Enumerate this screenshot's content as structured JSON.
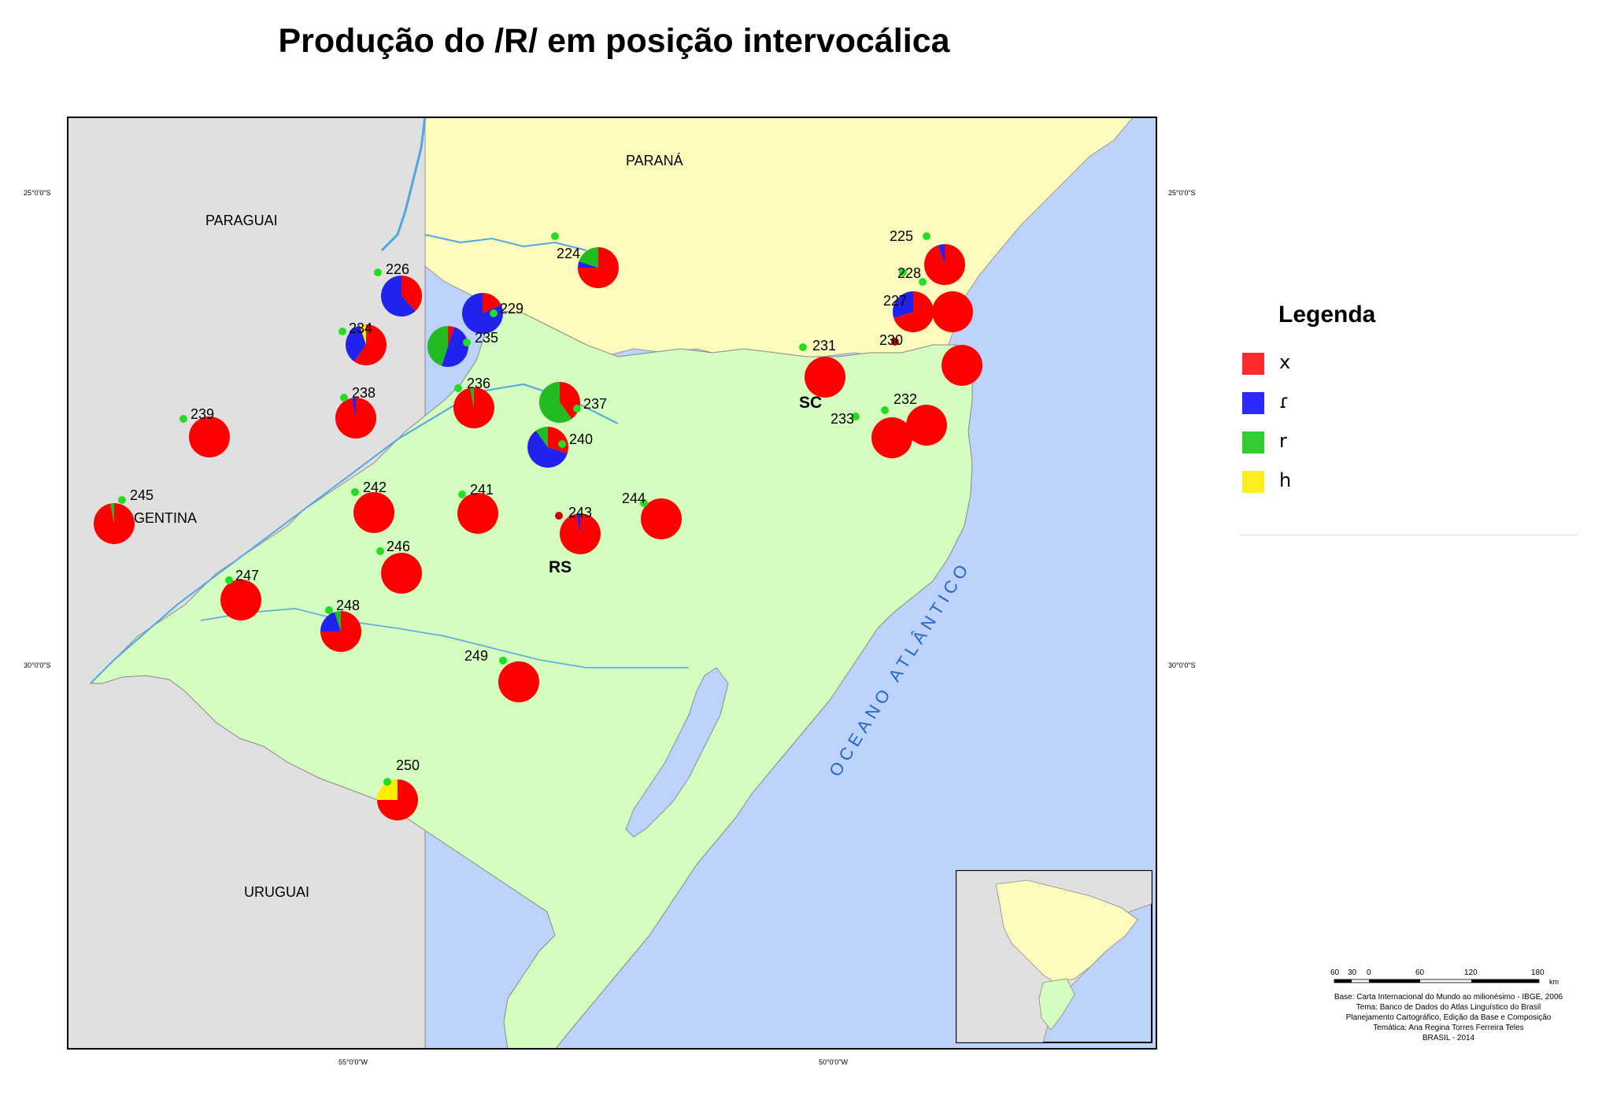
{
  "title": "Produção do /R/ em posição intervocálica",
  "colors": {
    "x": "#ff0000",
    "r_blue": "#2222ee",
    "r_green": "#22bb22",
    "h": "#ffee00",
    "study_area": "#d6fdc0",
    "parana": "#fdfbbe",
    "foreign": "#e0e0e0",
    "ocean": "#bed3fb",
    "river": "#4fa6e4",
    "point": "#22dd22"
  },
  "map": {
    "countries": {
      "paraguai": "PARAGUAI",
      "argentina": "ARGENTINA",
      "uruguai": "URUGUAI"
    },
    "states": {
      "parana": "PARANÁ",
      "sc": "SC",
      "rs": "RS"
    },
    "ocean_label": "OCEANO    ATLÂNTICO",
    "graticule": {
      "lat_top": "25°0'0\"S",
      "lat_bottom": "30°0'0\"S",
      "lon_left": "55°0'0\"W",
      "lon_right": "50°0'0\"W"
    }
  },
  "legend": {
    "title": "Legenda",
    "items": [
      {
        "symbol": "x",
        "color": "#ff0000"
      },
      {
        "symbol": "ɾ",
        "color": "#2222ee"
      },
      {
        "symbol": "r",
        "color": "#22bb22"
      },
      {
        "symbol": "h",
        "color": "#ffee00"
      }
    ]
  },
  "points": [
    {
      "id": "224",
      "x": 0.75,
      "r_blue": 0.05,
      "r_green": 0.2,
      "h": 0
    },
    {
      "id": "225",
      "x": 0.95,
      "r_blue": 0.05,
      "r_green": 0,
      "h": 0
    },
    {
      "id": "226",
      "x": 0.38,
      "r_blue": 0.62,
      "r_green": 0,
      "h": 0
    },
    {
      "id": "227",
      "x": 0.7,
      "r_blue": 0.3,
      "r_green": 0,
      "h": 0
    },
    {
      "id": "228",
      "x": 1.0,
      "r_blue": 0,
      "r_green": 0,
      "h": 0
    },
    {
      "id": "229",
      "x": 0.18,
      "r_blue": 0.82,
      "r_green": 0,
      "h": 0
    },
    {
      "id": "230",
      "x": 1.0,
      "r_blue": 0,
      "r_green": 0,
      "h": 0
    },
    {
      "id": "231",
      "x": 1.0,
      "r_blue": 0,
      "r_green": 0,
      "h": 0
    },
    {
      "id": "232",
      "x": 1.0,
      "r_blue": 0,
      "r_green": 0,
      "h": 0
    },
    {
      "id": "233",
      "x": 1.0,
      "r_blue": 0,
      "r_green": 0,
      "h": 0
    },
    {
      "id": "234",
      "x": 0.6,
      "r_blue": 0.35,
      "r_green": 0,
      "h": 0.05
    },
    {
      "id": "235",
      "x": 0.05,
      "r_blue": 0.5,
      "r_green": 0.45,
      "h": 0
    },
    {
      "id": "236",
      "x": 0.97,
      "r_blue": 0,
      "r_green": 0.03,
      "h": 0
    },
    {
      "id": "237",
      "x": 0.4,
      "r_blue": 0,
      "r_green": 0.6,
      "h": 0
    },
    {
      "id": "238",
      "x": 0.97,
      "r_blue": 0.03,
      "r_green": 0,
      "h": 0
    },
    {
      "id": "239",
      "x": 1.0,
      "r_blue": 0,
      "r_green": 0,
      "h": 0
    },
    {
      "id": "240",
      "x": 0.3,
      "r_blue": 0.6,
      "r_green": 0.1,
      "h": 0
    },
    {
      "id": "241",
      "x": 1.0,
      "r_blue": 0,
      "r_green": 0,
      "h": 0
    },
    {
      "id": "242",
      "x": 1.0,
      "r_blue": 0,
      "r_green": 0,
      "h": 0
    },
    {
      "id": "243",
      "x": 0.97,
      "r_blue": 0.03,
      "r_green": 0,
      "h": 0
    },
    {
      "id": "244",
      "x": 1.0,
      "r_blue": 0,
      "r_green": 0,
      "h": 0
    },
    {
      "id": "245",
      "x": 0.97,
      "r_blue": 0,
      "r_green": 0.03,
      "h": 0
    },
    {
      "id": "246",
      "x": 1.0,
      "r_blue": 0,
      "r_green": 0,
      "h": 0
    },
    {
      "id": "247",
      "x": 1.0,
      "r_blue": 0,
      "r_green": 0,
      "h": 0
    },
    {
      "id": "248",
      "x": 0.75,
      "r_blue": 0.2,
      "r_green": 0.05,
      "h": 0
    },
    {
      "id": "249",
      "x": 1.0,
      "r_blue": 0,
      "r_green": 0,
      "h": 0
    },
    {
      "id": "250",
      "x": 0.75,
      "r_blue": 0,
      "r_green": 0,
      "h": 0.25
    }
  ],
  "scalebar": {
    "ticks": [
      "60",
      "30",
      "0",
      "60",
      "120",
      "180"
    ],
    "unit": "km"
  },
  "credits": [
    "Base: Carta Internacional do Mundo ao milionésimo - IBGE, 2006",
    "Tema: Banco de Dados do Atlas Linguístico do Brasil",
    "Planejamento Cartográfico, Edição da Base e Composição",
    "Temática: Ana Regina Torres Ferreira Teles",
    "BRASIL - 2014"
  ]
}
